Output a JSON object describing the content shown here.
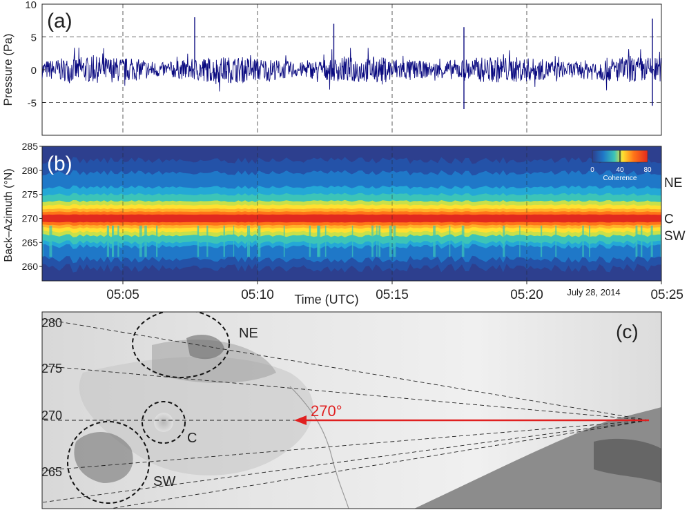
{
  "chart_data": [
    {
      "type": "line",
      "panel_label": "(a)",
      "ylabel": "Pressure (Pa)",
      "ylim": [
        -10,
        10
      ],
      "yticks": [
        "10",
        "5",
        "0",
        "-5"
      ],
      "x_range_utc": [
        "05:02",
        "05:25"
      ],
      "grid": "dashed",
      "series": [
        {
          "color": "#0a0a80",
          "baseline_amplitude_pa": 2,
          "peaks": [
            {
              "time": "05:07:40",
              "pressure": 8.0
            },
            {
              "time": "05:12:50",
              "pressure": 7.0
            },
            {
              "time": "05:17:40",
              "pressure": 6.5
            },
            {
              "time": "05:17:40",
              "pressure": -6.0
            },
            {
              "time": "05:24:40",
              "pressure": 7.8
            },
            {
              "time": "05:24:40",
              "pressure": -5.5
            }
          ]
        }
      ]
    },
    {
      "type": "heatmap",
      "panel_label": "(b)",
      "ylabel": "Back–Azimuth (°N)",
      "ylim": [
        257,
        285
      ],
      "yticks": [
        "285",
        "280",
        "275",
        "270",
        "265",
        "260"
      ],
      "xlabel": "Time (UTC)",
      "xticks": [
        "05:05",
        "05:10",
        "05:15",
        "05:20",
        "05:25"
      ],
      "date_label": "July 28, 2014",
      "colorbar": {
        "label": "Coherence",
        "ticks": [
          "0",
          "40",
          "80"
        ],
        "range": [
          0,
          80
        ]
      },
      "source_labels": [
        {
          "name": "NE",
          "azimuth": 277.5
        },
        {
          "name": "C",
          "azimuth": 270
        },
        {
          "name": "SW",
          "azimuth": 266.5
        }
      ],
      "dominant_azimuth": 270,
      "color_scale": [
        "#2d3f8e",
        "#2452a8",
        "#1f78c8",
        "#24a8d6",
        "#3cc4b8",
        "#c8e04a",
        "#ffe030",
        "#ffb02a",
        "#ff7418",
        "#e22a1e"
      ]
    },
    {
      "type": "map",
      "panel_label": "(c)",
      "bearing_labels": [
        "280",
        "275",
        "270",
        "265"
      ],
      "crater_labels": [
        "NE",
        "C",
        "SW"
      ],
      "arrow_label": "270°",
      "arrow_color": "#e02020"
    }
  ]
}
